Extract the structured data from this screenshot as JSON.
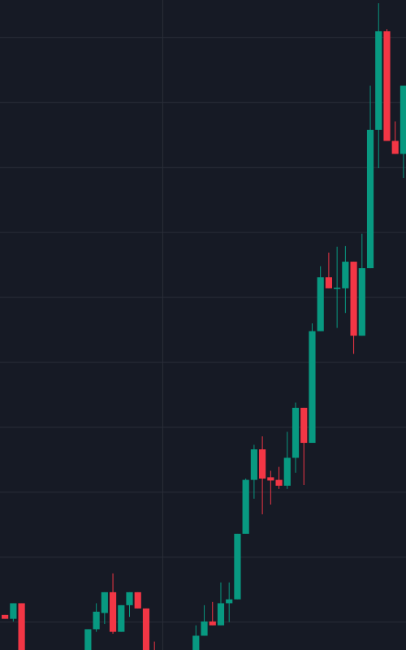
{
  "chart_data": {
    "type": "candlestick",
    "x": [
      0,
      1,
      2,
      10,
      11,
      12,
      13,
      14,
      15,
      16,
      17,
      18,
      23,
      24,
      25,
      26,
      27,
      28,
      29,
      30,
      31,
      32,
      33,
      34,
      35,
      36,
      37,
      38,
      39,
      40,
      41,
      42,
      43,
      44,
      45,
      46,
      47,
      48
    ],
    "open": [
      0.11,
      0.05,
      0.29,
      -0.49,
      -0.11,
      0.14,
      0.46,
      -0.15,
      0.26,
      0.46,
      0.21,
      -0.49,
      -0.49,
      -0.21,
      0.01,
      -0.05,
      0.29,
      0.35,
      1.36,
      2.19,
      2.66,
      2.23,
      2.19,
      2.1,
      2.53,
      3.3,
      2.76,
      4.48,
      5.31,
      5.13,
      5.14,
      5.55,
      4.41,
      5.45,
      7.58,
      9.1,
      7.41,
      7.21
    ],
    "high": [
      0.11,
      0.29,
      0.29,
      -0.11,
      0.29,
      0.46,
      0.75,
      0.26,
      0.46,
      0.46,
      0.21,
      -0.3,
      -0.05,
      0.26,
      0.31,
      0.61,
      0.61,
      1.36,
      2.21,
      2.73,
      2.86,
      2.33,
      2.39,
      2.93,
      3.38,
      3.3,
      4.6,
      5.48,
      5.69,
      5.78,
      5.79,
      5.55,
      5.98,
      8.26,
      9.53,
      9.13,
      7.71,
      8.26
    ],
    "low": [
      0.05,
      0.01,
      -0.49,
      -0.49,
      -0.15,
      -0.03,
      -0.18,
      -0.15,
      0.08,
      0.21,
      -0.49,
      -0.55,
      -0.49,
      -0.21,
      -0.05,
      -0.05,
      0,
      0.35,
      1.36,
      1.9,
      1.66,
      1.81,
      2.05,
      2.05,
      2.3,
      2.11,
      2.76,
      4.48,
      5.14,
      4.53,
      4.76,
      4.13,
      4.41,
      5.45,
      6.99,
      7.41,
      7.21,
      6.84
    ],
    "close": [
      0.05,
      0.29,
      -0.49,
      -0.11,
      0.16,
      0.46,
      -0.15,
      0.26,
      0.46,
      0.21,
      -0.49,
      -0.55,
      -0.21,
      0.01,
      -0.05,
      0.29,
      0.35,
      1.36,
      2.19,
      2.66,
      2.21,
      2.18,
      2.1,
      2.53,
      3.3,
      2.76,
      4.48,
      5.31,
      5.14,
      5.15,
      5.55,
      4.41,
      5.45,
      7.58,
      9.1,
      7.41,
      7.21,
      8.26
    ],
    "up_color": "#089981",
    "down_color": "#f23645",
    "grid_color": "#2a2e39",
    "xlim": [
      -0.6,
      48.3
    ],
    "xticks": [
      19
    ],
    "ylim": [
      -0.43,
      9.58
    ],
    "yticks": [
      0,
      1,
      2,
      3,
      4,
      5,
      6,
      7,
      8,
      9
    ],
    "grid": true
  }
}
